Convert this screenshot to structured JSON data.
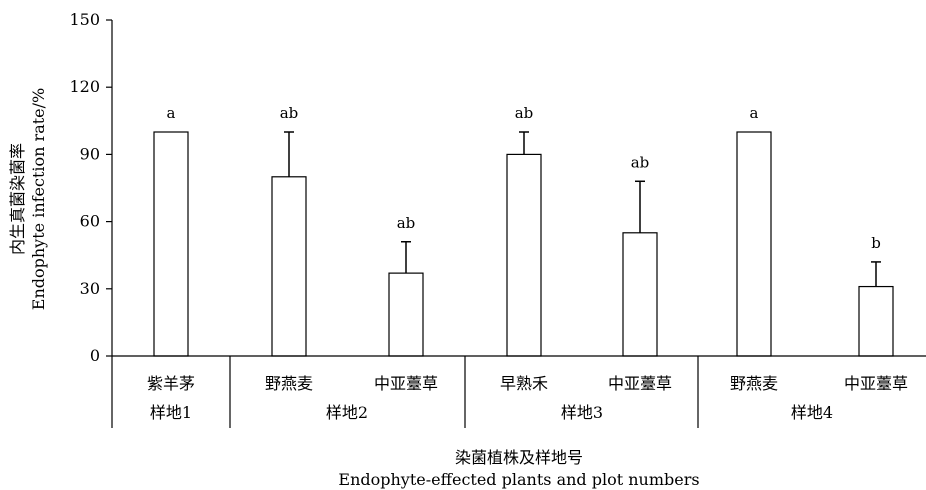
{
  "chart_data": {
    "type": "bar",
    "title": "",
    "ylabel": "内生真菌染菌率",
    "ylabel_en": "Endophyte infection rate/%",
    "xlabel": "染菌植株及样地号",
    "xlabel_en": "Endophyte-effected plants and plot numbers",
    "ylim": [
      0,
      150
    ],
    "yticks": [
      "0",
      "30",
      "60",
      "90",
      "120",
      "150"
    ],
    "categories": [
      "紫羊茅",
      "野燕麦",
      "中亚薹草",
      "早熟禾",
      "中亚薹草",
      "野燕麦",
      "中亚薹草"
    ],
    "values": [
      100,
      80,
      37,
      90,
      55,
      100,
      31
    ],
    "error_upper": [
      0,
      20,
      14,
      10,
      23,
      0,
      11
    ],
    "significance": [
      "a",
      "ab",
      "ab",
      "ab",
      "ab",
      "a",
      "b"
    ],
    "groups": [
      {
        "label": "样地1",
        "count": 1
      },
      {
        "label": "样地2",
        "count": 2
      },
      {
        "label": "样地3",
        "count": 2
      },
      {
        "label": "样地4",
        "count": 2
      }
    ],
    "grid": false,
    "legend": "none",
    "bar_color": "#ffffff",
    "edge_color": "#000000"
  }
}
